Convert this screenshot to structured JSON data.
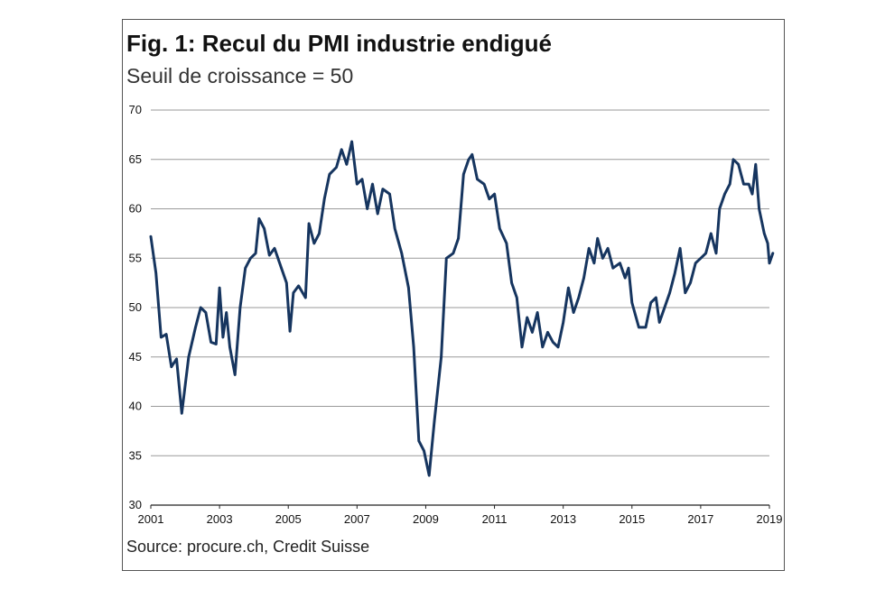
{
  "chart_data": {
    "type": "line",
    "title": "Fig. 1: Recul du PMI industrie endigué",
    "subtitle": "Seuil de croissance = 50",
    "source": "Source: procure.ch, Credit Suisse",
    "xlabel": "",
    "ylabel": "",
    "ylim": [
      30,
      70
    ],
    "xlim": [
      2001,
      2019
    ],
    "yticks": [
      "30",
      "35",
      "40",
      "45",
      "50",
      "55",
      "60",
      "65",
      "70"
    ],
    "xticks": [
      "2001",
      "2003",
      "2005",
      "2007",
      "2009",
      "2011",
      "2013",
      "2015",
      "2017",
      "2019"
    ],
    "grid": true,
    "line_color": "#16355f",
    "series": [
      {
        "values": [
          [
            2001.0,
            57.2
          ],
          [
            2001.15,
            53.5
          ],
          [
            2001.3,
            47.0
          ],
          [
            2001.45,
            47.3
          ],
          [
            2001.6,
            44.0
          ],
          [
            2001.75,
            44.8
          ],
          [
            2001.9,
            39.3
          ],
          [
            2002.1,
            45.0
          ],
          [
            2002.3,
            48.0
          ],
          [
            2002.45,
            50.0
          ],
          [
            2002.6,
            49.5
          ],
          [
            2002.75,
            46.5
          ],
          [
            2002.9,
            46.3
          ],
          [
            2003.0,
            52.0
          ],
          [
            2003.1,
            47.0
          ],
          [
            2003.2,
            49.5
          ],
          [
            2003.3,
            46.0
          ],
          [
            2003.45,
            43.2
          ],
          [
            2003.6,
            50.0
          ],
          [
            2003.75,
            54.0
          ],
          [
            2003.9,
            55.0
          ],
          [
            2004.05,
            55.5
          ],
          [
            2004.15,
            59.0
          ],
          [
            2004.3,
            58.0
          ],
          [
            2004.45,
            55.3
          ],
          [
            2004.6,
            56.0
          ],
          [
            2004.8,
            54.0
          ],
          [
            2004.95,
            52.5
          ],
          [
            2005.05,
            47.6
          ],
          [
            2005.15,
            51.5
          ],
          [
            2005.3,
            52.2
          ],
          [
            2005.5,
            51.0
          ],
          [
            2005.6,
            58.5
          ],
          [
            2005.75,
            56.5
          ],
          [
            2005.9,
            57.5
          ],
          [
            2006.05,
            61.0
          ],
          [
            2006.2,
            63.5
          ],
          [
            2006.4,
            64.2
          ],
          [
            2006.55,
            66.0
          ],
          [
            2006.7,
            64.5
          ],
          [
            2006.85,
            66.8
          ],
          [
            2007.0,
            62.5
          ],
          [
            2007.15,
            63.0
          ],
          [
            2007.3,
            60.0
          ],
          [
            2007.45,
            62.5
          ],
          [
            2007.6,
            59.5
          ],
          [
            2007.75,
            62.0
          ],
          [
            2007.95,
            61.5
          ],
          [
            2008.1,
            58.0
          ],
          [
            2008.3,
            55.5
          ],
          [
            2008.5,
            52.0
          ],
          [
            2008.65,
            46.0
          ],
          [
            2008.8,
            36.5
          ],
          [
            2008.95,
            35.5
          ],
          [
            2009.1,
            33.0
          ],
          [
            2009.25,
            38.5
          ],
          [
            2009.45,
            45.0
          ],
          [
            2009.6,
            55.0
          ],
          [
            2009.8,
            55.5
          ],
          [
            2009.95,
            57.0
          ],
          [
            2010.1,
            63.5
          ],
          [
            2010.25,
            65.0
          ],
          [
            2010.35,
            65.5
          ],
          [
            2010.5,
            63.0
          ],
          [
            2010.7,
            62.5
          ],
          [
            2010.85,
            61.0
          ],
          [
            2011.0,
            61.5
          ],
          [
            2011.15,
            58.0
          ],
          [
            2011.35,
            56.5
          ],
          [
            2011.5,
            52.5
          ],
          [
            2011.65,
            51.0
          ],
          [
            2011.8,
            46.0
          ],
          [
            2011.95,
            49.0
          ],
          [
            2012.1,
            47.5
          ],
          [
            2012.25,
            49.5
          ],
          [
            2012.4,
            46.0
          ],
          [
            2012.55,
            47.5
          ],
          [
            2012.7,
            46.5
          ],
          [
            2012.85,
            46.0
          ],
          [
            2013.0,
            48.5
          ],
          [
            2013.15,
            52.0
          ],
          [
            2013.3,
            49.5
          ],
          [
            2013.45,
            51.0
          ],
          [
            2013.6,
            53.0
          ],
          [
            2013.75,
            56.0
          ],
          [
            2013.9,
            54.5
          ],
          [
            2014.0,
            57.0
          ],
          [
            2014.15,
            55.0
          ],
          [
            2014.3,
            56.0
          ],
          [
            2014.45,
            54.0
          ],
          [
            2014.65,
            54.5
          ],
          [
            2014.8,
            53.0
          ],
          [
            2014.9,
            54.0
          ],
          [
            2015.0,
            50.5
          ],
          [
            2015.2,
            48.0
          ],
          [
            2015.4,
            48.0
          ],
          [
            2015.55,
            50.5
          ],
          [
            2015.7,
            51.0
          ],
          [
            2015.8,
            48.5
          ],
          [
            2015.95,
            50.0
          ],
          [
            2016.1,
            51.5
          ],
          [
            2016.25,
            53.5
          ],
          [
            2016.4,
            56.0
          ],
          [
            2016.55,
            51.5
          ],
          [
            2016.7,
            52.5
          ],
          [
            2016.85,
            54.5
          ],
          [
            2017.0,
            55.0
          ],
          [
            2017.15,
            55.5
          ],
          [
            2017.3,
            57.5
          ],
          [
            2017.45,
            55.5
          ],
          [
            2017.55,
            60.0
          ],
          [
            2017.7,
            61.5
          ],
          [
            2017.85,
            62.5
          ],
          [
            2017.95,
            65.0
          ],
          [
            2018.1,
            64.5
          ],
          [
            2018.25,
            62.5
          ],
          [
            2018.4,
            62.5
          ],
          [
            2018.5,
            61.5
          ],
          [
            2018.6,
            64.5
          ],
          [
            2018.7,
            60.0
          ],
          [
            2018.85,
            57.5
          ],
          [
            2018.95,
            56.5
          ],
          [
            2019.0,
            54.5
          ],
          [
            2019.1,
            55.5
          ]
        ]
      }
    ]
  }
}
